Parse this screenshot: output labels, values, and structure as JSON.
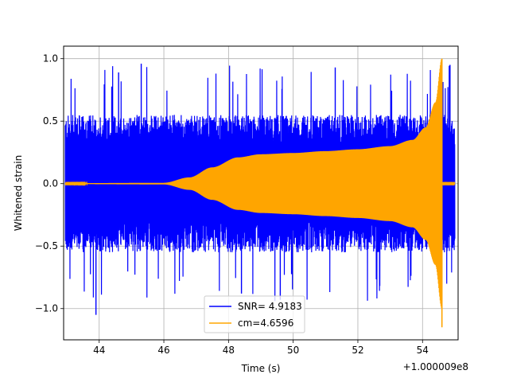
{
  "chart_data": {
    "type": "line",
    "title": "",
    "xlabel": "Time (s)",
    "ylabel": "Whitened strain",
    "x_offset_label": "+1.000009e8",
    "xlim": [
      42.9,
      55.1
    ],
    "ylim": [
      -1.25,
      1.1
    ],
    "xticks": [
      44,
      46,
      48,
      50,
      52,
      54
    ],
    "yticks": [
      -1.0,
      -0.5,
      0.0,
      0.5,
      1.0
    ],
    "xtick_labels": [
      "44",
      "46",
      "48",
      "50",
      "52",
      "54"
    ],
    "ytick_labels": [
      "−1.0",
      "−0.5",
      "0.0",
      "0.5",
      "1.0"
    ],
    "grid": true,
    "legend_position": "lower-center",
    "series": [
      {
        "name": "SNR= 4.9183",
        "color": "#0000ff",
        "style": "noise",
        "x_range": [
          42.95,
          55.0
        ],
        "typical_envelope": 0.55,
        "max": 0.96,
        "min": -1.05
      },
      {
        "name": "cm=4.6596",
        "color": "#ffa500",
        "style": "chirp",
        "x_range": [
          42.95,
          55.0
        ],
        "envelope_points": [
          [
            42.95,
            0.003
          ],
          [
            46.0,
            0.006
          ],
          [
            46.8,
            0.05
          ],
          [
            47.5,
            0.13
          ],
          [
            48.3,
            0.21
          ],
          [
            49.0,
            0.235
          ],
          [
            50.0,
            0.245
          ],
          [
            51.0,
            0.26
          ],
          [
            52.0,
            0.275
          ],
          [
            53.0,
            0.3
          ],
          [
            53.7,
            0.35
          ],
          [
            54.1,
            0.45
          ],
          [
            54.4,
            0.65
          ],
          [
            54.6,
            1.0
          ]
        ],
        "peak_x": 54.6,
        "max": 1.0,
        "min": -1.15
      }
    ]
  }
}
